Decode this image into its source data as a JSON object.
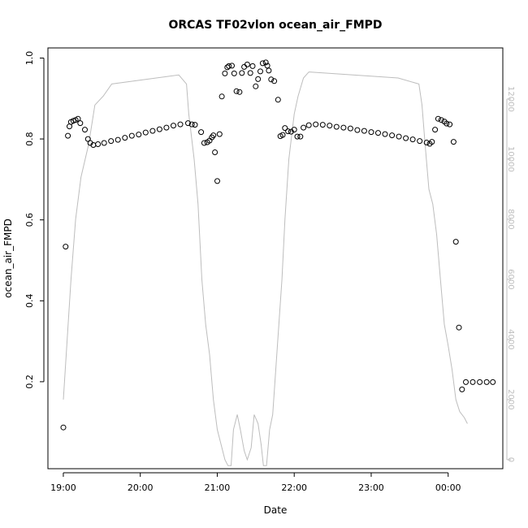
{
  "chart_data": {
    "type": "scatter",
    "title": "ORCAS TF02vlon ocean_air_FMPD",
    "xlabel": "Date",
    "ylabel": "ocean_air_FMPD",
    "x_ticks": [
      {
        "label": "19:00",
        "hours": 0
      },
      {
        "label": "20:00",
        "hours": 1
      },
      {
        "label": "21:00",
        "hours": 2
      },
      {
        "label": "22:00",
        "hours": 3
      },
      {
        "label": "23:00",
        "hours": 4
      },
      {
        "label": "00:00",
        "hours": 5
      }
    ],
    "x_range_hours": [
      -0.2,
      5.71
    ],
    "ylim": [
      -0.015,
      1.025
    ],
    "y_ticks": [
      "0.2",
      "0.4",
      "0.6",
      "0.8",
      "1.0"
    ],
    "y2lim": [
      -300,
      13700
    ],
    "y2_ticks": [
      "0",
      "2000",
      "4000",
      "6000",
      "8000",
      "10000",
      "12000"
    ],
    "colors": {
      "points": "#000000",
      "line": "#bdbdbd",
      "right_axis": "#bdbdbd"
    },
    "series": [
      {
        "kind": "points",
        "data": [
          [
            0.0,
            0.087
          ],
          [
            0.03,
            0.534
          ],
          [
            0.06,
            0.808
          ],
          [
            0.08,
            0.831
          ],
          [
            0.1,
            0.842
          ],
          [
            0.13,
            0.845
          ],
          [
            0.16,
            0.847
          ],
          [
            0.19,
            0.85
          ],
          [
            0.22,
            0.839
          ],
          [
            0.28,
            0.823
          ],
          [
            0.32,
            0.8
          ],
          [
            0.35,
            0.79
          ],
          [
            0.39,
            0.785
          ],
          [
            0.45,
            0.787
          ],
          [
            0.53,
            0.79
          ],
          [
            0.62,
            0.795
          ],
          [
            0.71,
            0.798
          ],
          [
            0.8,
            0.803
          ],
          [
            0.89,
            0.808
          ],
          [
            0.98,
            0.811
          ],
          [
            1.07,
            0.816
          ],
          [
            1.16,
            0.82
          ],
          [
            1.25,
            0.824
          ],
          [
            1.34,
            0.828
          ],
          [
            1.43,
            0.833
          ],
          [
            1.52,
            0.836
          ],
          [
            1.62,
            0.839
          ],
          [
            1.67,
            0.836
          ],
          [
            1.71,
            0.835
          ],
          [
            1.79,
            0.817
          ],
          [
            1.83,
            0.79
          ],
          [
            1.87,
            0.792
          ],
          [
            1.9,
            0.796
          ],
          [
            1.93,
            0.804
          ],
          [
            1.95,
            0.809
          ],
          [
            1.97,
            0.767
          ],
          [
            2.0,
            0.696
          ],
          [
            2.03,
            0.812
          ],
          [
            2.06,
            0.905
          ],
          [
            2.1,
            0.962
          ],
          [
            2.13,
            0.977
          ],
          [
            2.15,
            0.98
          ],
          [
            2.19,
            0.981
          ],
          [
            2.22,
            0.962
          ],
          [
            2.25,
            0.918
          ],
          [
            2.29,
            0.916
          ],
          [
            2.32,
            0.963
          ],
          [
            2.35,
            0.978
          ],
          [
            2.39,
            0.984
          ],
          [
            2.43,
            0.963
          ],
          [
            2.46,
            0.98
          ],
          [
            2.5,
            0.93
          ],
          [
            2.53,
            0.948
          ],
          [
            2.56,
            0.967
          ],
          [
            2.59,
            0.987
          ],
          [
            2.63,
            0.989
          ],
          [
            2.65,
            0.981
          ],
          [
            2.67,
            0.969
          ],
          [
            2.7,
            0.947
          ],
          [
            2.74,
            0.943
          ],
          [
            2.79,
            0.897
          ],
          [
            2.82,
            0.807
          ],
          [
            2.85,
            0.81
          ],
          [
            2.88,
            0.827
          ],
          [
            2.92,
            0.819
          ],
          [
            2.96,
            0.818
          ],
          [
            3.0,
            0.823
          ],
          [
            3.04,
            0.806
          ],
          [
            3.08,
            0.806
          ],
          [
            3.12,
            0.828
          ],
          [
            3.19,
            0.834
          ],
          [
            3.28,
            0.836
          ],
          [
            3.37,
            0.835
          ],
          [
            3.46,
            0.833
          ],
          [
            3.55,
            0.83
          ],
          [
            3.64,
            0.828
          ],
          [
            3.73,
            0.826
          ],
          [
            3.82,
            0.822
          ],
          [
            3.91,
            0.82
          ],
          [
            4.0,
            0.817
          ],
          [
            4.09,
            0.815
          ],
          [
            4.18,
            0.812
          ],
          [
            4.27,
            0.809
          ],
          [
            4.36,
            0.806
          ],
          [
            4.45,
            0.802
          ],
          [
            4.54,
            0.799
          ],
          [
            4.63,
            0.795
          ],
          [
            4.72,
            0.791
          ],
          [
            4.76,
            0.788
          ],
          [
            4.79,
            0.793
          ],
          [
            4.83,
            0.823
          ],
          [
            4.87,
            0.85
          ],
          [
            4.91,
            0.847
          ],
          [
            4.95,
            0.843
          ],
          [
            4.98,
            0.838
          ],
          [
            5.02,
            0.836
          ],
          [
            5.07,
            0.793
          ],
          [
            5.1,
            0.546
          ],
          [
            5.14,
            0.334
          ],
          [
            5.18,
            0.181
          ],
          [
            5.23,
            0.199
          ],
          [
            5.32,
            0.199
          ],
          [
            5.41,
            0.199
          ],
          [
            5.5,
            0.199
          ],
          [
            5.58,
            0.199
          ]
        ]
      },
      {
        "kind": "line",
        "axis": "right",
        "data": [
          [
            0.0,
            2000
          ],
          [
            0.05,
            4000
          ],
          [
            0.1,
            6000
          ],
          [
            0.16,
            8000
          ],
          [
            0.23,
            9400
          ],
          [
            0.33,
            10500
          ],
          [
            0.41,
            11800
          ],
          [
            0.52,
            12100
          ],
          [
            0.63,
            12500
          ],
          [
            1.5,
            12800
          ],
          [
            1.6,
            12500
          ],
          [
            1.63,
            11500
          ],
          [
            1.7,
            10000
          ],
          [
            1.75,
            8500
          ],
          [
            1.8,
            6000
          ],
          [
            1.85,
            4500
          ],
          [
            1.9,
            3500
          ],
          [
            1.95,
            2000
          ],
          [
            2.0,
            1000
          ],
          [
            2.05,
            500
          ],
          [
            2.1,
            0
          ],
          [
            2.14,
            -200
          ],
          [
            2.18,
            -200
          ],
          [
            2.21,
            1000
          ],
          [
            2.26,
            1500
          ],
          [
            2.3,
            1000
          ],
          [
            2.35,
            300
          ],
          [
            2.39,
            0
          ],
          [
            2.44,
            400
          ],
          [
            2.48,
            1500
          ],
          [
            2.53,
            1200
          ],
          [
            2.57,
            500
          ],
          [
            2.6,
            -200
          ],
          [
            2.64,
            -200
          ],
          [
            2.68,
            1000
          ],
          [
            2.72,
            1500
          ],
          [
            2.76,
            3000
          ],
          [
            2.8,
            4500
          ],
          [
            2.84,
            6000
          ],
          [
            2.88,
            8000
          ],
          [
            2.93,
            10000
          ],
          [
            3.0,
            11500
          ],
          [
            3.05,
            12100
          ],
          [
            3.12,
            12700
          ],
          [
            3.19,
            12900
          ],
          [
            4.35,
            12700
          ],
          [
            4.62,
            12500
          ],
          [
            4.66,
            11800
          ],
          [
            4.7,
            10500
          ],
          [
            4.75,
            9000
          ],
          [
            4.8,
            8500
          ],
          [
            4.85,
            7500
          ],
          [
            4.9,
            6000
          ],
          [
            4.95,
            4500
          ],
          [
            5.0,
            3800
          ],
          [
            5.05,
            3000
          ],
          [
            5.1,
            2000
          ],
          [
            5.15,
            1600
          ],
          [
            5.21,
            1400
          ],
          [
            5.25,
            1200
          ]
        ]
      }
    ]
  }
}
